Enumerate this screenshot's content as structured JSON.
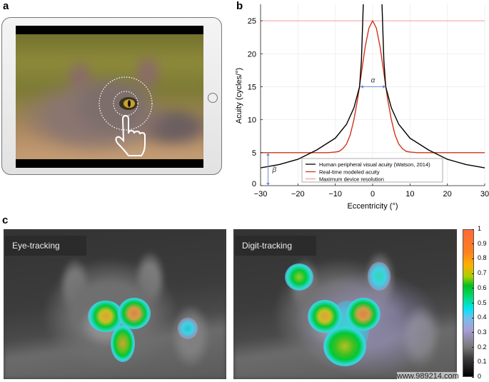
{
  "panels": {
    "a": {
      "label": "a"
    },
    "b": {
      "label": "b"
    },
    "c": {
      "label": "c",
      "left_title": "Eye-tracking",
      "right_title": "Digit-tracking",
      "colorbar": {
        "ticks": [
          "0",
          "0.1",
          "0.2",
          "0.3",
          "0.4",
          "0.5",
          "0.6",
          "0.7",
          "0.8",
          "0.9",
          "1"
        ],
        "colormap": [
          "#000000",
          "#777777",
          "#a99fd8",
          "#00e4f4",
          "#00c020",
          "#ffb000",
          "#ff6a38"
        ]
      }
    }
  },
  "chart_data": {
    "type": "line",
    "title": "",
    "xlabel": "Eccentricity (°)",
    "ylabel": "Acuity (cycles/°)",
    "xlim": [
      -30,
      30
    ],
    "ylim": [
      0,
      27.5
    ],
    "xticks": [
      "−30",
      "−20",
      "−10",
      "0",
      "10",
      "20",
      "30"
    ],
    "xtick_values": [
      -30,
      -20,
      -10,
      0,
      10,
      20,
      30
    ],
    "yticks": [
      "0",
      "5",
      "10",
      "15",
      "20",
      "25"
    ],
    "ytick_values": [
      0,
      5,
      10,
      15,
      20,
      25
    ],
    "grid": true,
    "legend_placement": "bottom-center",
    "series": [
      {
        "name": "Human peripheral visual acuity (Watson, 2014)",
        "color": "#000000",
        "segments": [
          {
            "x": [
              -30,
              -25,
              -20,
              -15,
              -10,
              -7,
              -5,
              -3.5,
              -3,
              -2.5
            ],
            "y": [
              2.7,
              3.2,
              4.0,
              5.4,
              7.2,
              9.3,
              11.8,
              15,
              19,
              27.5
            ]
          },
          {
            "x": [
              2.5,
              3,
              3.5,
              5,
              7,
              10,
              15,
              20,
              25,
              30
            ],
            "y": [
              27.5,
              19,
              15,
              11.8,
              9.3,
              7.2,
              5.4,
              4.0,
              3.2,
              2.7
            ]
          }
        ]
      },
      {
        "name": "Real-time modeled acuity",
        "color": "#d0341c",
        "segments": [
          {
            "x": [
              -30,
              -12,
              -10,
              -9,
              -8,
              -7,
              -6,
              -5,
              -4,
              -3,
              -2,
              -1,
              0,
              1,
              2,
              3,
              4,
              5,
              6,
              7,
              8,
              9,
              10,
              12,
              30
            ],
            "y": [
              5,
              5,
              5.1,
              5.2,
              5.6,
              6.3,
              7.7,
              10,
              13.2,
              17.1,
              21,
              23.9,
              25,
              23.9,
              21,
              17.1,
              13.2,
              10,
              7.7,
              6.3,
              5.6,
              5.2,
              5.1,
              5,
              5
            ]
          }
        ]
      },
      {
        "name": "Maximum device resolution",
        "color": "#f2a0a0",
        "segments": [
          {
            "x": [
              -30,
              30
            ],
            "y": [
              25,
              25
            ]
          }
        ]
      }
    ],
    "annotations": [
      {
        "label": "α",
        "type": "double-arrow",
        "x": [
          -3.3,
          3.5
        ],
        "y": [
          15,
          15
        ],
        "color": "#6f8fd0"
      },
      {
        "label": "β",
        "type": "double-arrow",
        "x": [
          -28,
          -28
        ],
        "y": [
          0,
          5
        ],
        "color": "#6f8fd0"
      }
    ]
  },
  "watermark": "www.989214.com"
}
